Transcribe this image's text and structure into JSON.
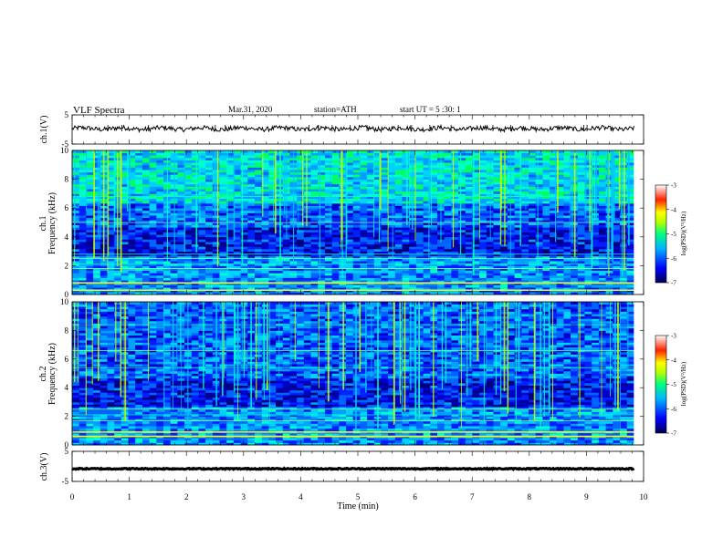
{
  "header": {
    "title": "VLF  Spectra",
    "date": "Mar.31, 2020",
    "station": "station=ATH",
    "start": "start  UT  =   5  :30: 1"
  },
  "chart_data": [
    {
      "type": "line",
      "ylabel": "ch.1(V)",
      "ylim": [
        -5,
        5
      ],
      "yticks": [
        "5",
        "-5"
      ],
      "xlim": [
        0,
        10
      ],
      "approx_level": 0.3,
      "xmax_data": 9.83
    },
    {
      "type": "heatmap",
      "ylabel_top": "ch.1",
      "ylabel": "Frequency  (kHz)",
      "ylim": [
        0,
        10
      ],
      "yticks": [
        "0",
        "2",
        "4",
        "6",
        "8",
        "10"
      ],
      "xlim": [
        0,
        10
      ],
      "colorbar": {
        "label": "log(PSD)(V²/Hz)",
        "range": [
          -7,
          -3
        ],
        "ticks": [
          "-3",
          "-4",
          "-5",
          "-6",
          "-7"
        ]
      },
      "bands_khz": [
        0.3,
        0.8,
        1.8,
        2.1,
        2.5,
        2.8,
        5.0,
        6.8
      ]
    },
    {
      "type": "heatmap",
      "ylabel_top": "ch.2",
      "ylabel": "Frequency  (kHz)",
      "ylim": [
        0,
        10
      ],
      "yticks": [
        "0",
        "2",
        "4",
        "6",
        "8",
        "10"
      ],
      "xlim": [
        0,
        10
      ],
      "colorbar": {
        "label": "log(PSD)(V²/Hz)",
        "range": [
          -7,
          -3
        ],
        "ticks": [
          "-3",
          "-4",
          "-5",
          "-6",
          "-7"
        ]
      },
      "bands_khz": [
        0.6,
        0.9,
        1.7,
        2.1,
        2.5,
        5.4,
        6.6,
        8.4
      ]
    },
    {
      "type": "line",
      "ylabel": "ch.3(V)",
      "ylim": [
        -5,
        5
      ],
      "yticks": [
        "5",
        "-5"
      ],
      "xlim": [
        0,
        10
      ],
      "approx_level": -0.8,
      "xmax_data": 9.83
    }
  ],
  "xaxis": {
    "label": "Time  (min)",
    "ticks": [
      "0",
      "1",
      "2",
      "3",
      "4",
      "5",
      "6",
      "7",
      "8",
      "9",
      "10"
    ]
  }
}
